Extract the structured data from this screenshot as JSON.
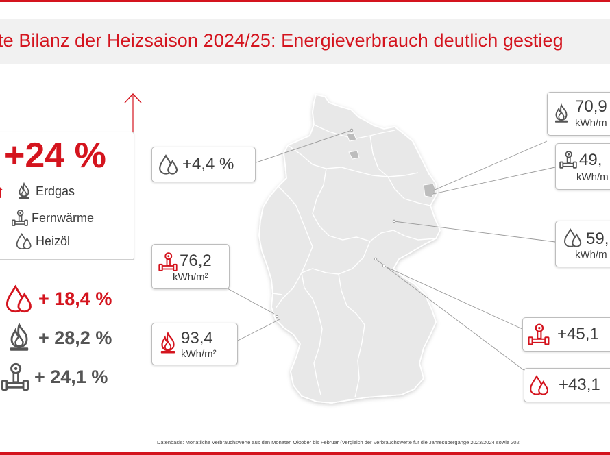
{
  "title": "te Bilanz der Heizsaison 2024/25: Energieverbrauch deutlich gestieg",
  "summary": {
    "total_change": "+24 %",
    "sign": "↑",
    "legend": [
      {
        "label": "Erdgas",
        "icon": "gas-flame-icon"
      },
      {
        "label": "Fernwärme",
        "icon": "district-heating-icon"
      },
      {
        "label": "Heizöl",
        "icon": "oil-drop-icon"
      }
    ]
  },
  "changes": [
    {
      "value": "+ 18,4 %",
      "icon": "oil-drop-icon",
      "color": "#d4141e"
    },
    {
      "value": "+ 28,2 %",
      "icon": "gas-flame-icon",
      "color": "#555555"
    },
    {
      "value": "+ 24,1 %",
      "icon": "district-heating-icon",
      "color": "#555555"
    }
  ],
  "callouts": {
    "north_oil": {
      "value": "+4,4 %",
      "icon": "oil-drop-icon"
    },
    "west_heat": {
      "value": "76,2",
      "unit": "kWh/m²",
      "icon": "district-heating-icon"
    },
    "southwest_gas": {
      "value": "93,4",
      "unit": "kWh/m²",
      "icon": "gas-flame-icon"
    },
    "east_gas": {
      "value": "70,9",
      "unit": "kWh/m",
      "icon": "gas-flame-icon"
    },
    "east_heat": {
      "value": "49,",
      "unit": "kWh/m",
      "icon": "district-heating-icon"
    },
    "east_oil": {
      "value": "59,",
      "unit": "kWh/m",
      "icon": "oil-drop-icon"
    },
    "south_heat": {
      "value": "+45,1",
      "icon": "district-heating-icon"
    },
    "south_oil": {
      "value": "+43,1",
      "icon": "oil-drop-icon"
    }
  },
  "footnote": "Datenbasis: Monatliche Verbrauchswerte aus den Monaten Oktober bis Februar (Vergleich der Verbrauchswerte für die Jahresübergänge 2023/2024 sowie 202",
  "colors": {
    "accent": "#d4141e",
    "text": "#3c3c3c",
    "map_fill": "#e8e8e8",
    "header_bg": "#f1f1f1"
  }
}
